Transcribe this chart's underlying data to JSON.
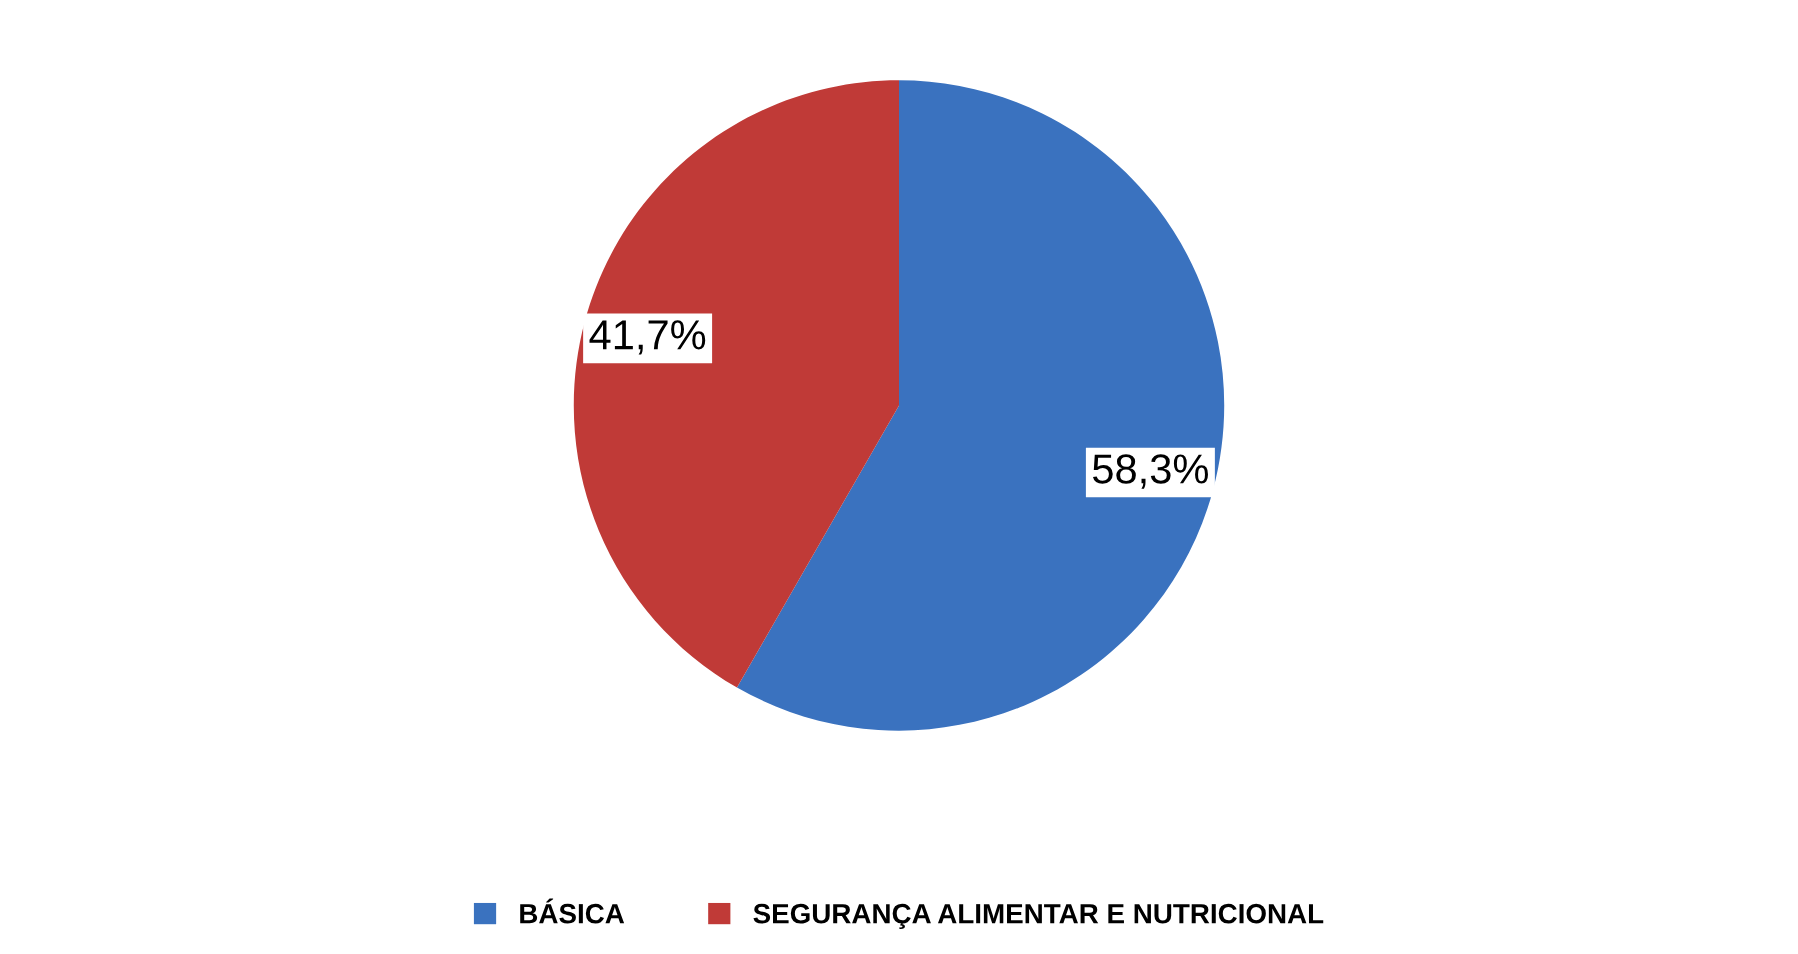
{
  "chart_data": {
    "type": "pie",
    "categories": [
      "BÁSICA",
      "SEGURANÇA ALIMENTAR E NUTRICIONAL"
    ],
    "values": [
      58.3,
      41.7
    ],
    "colors": [
      "#3a72bf",
      "#c03a37"
    ],
    "value_labels": [
      "58,3%",
      "41,7%"
    ],
    "legend": "bottom"
  }
}
